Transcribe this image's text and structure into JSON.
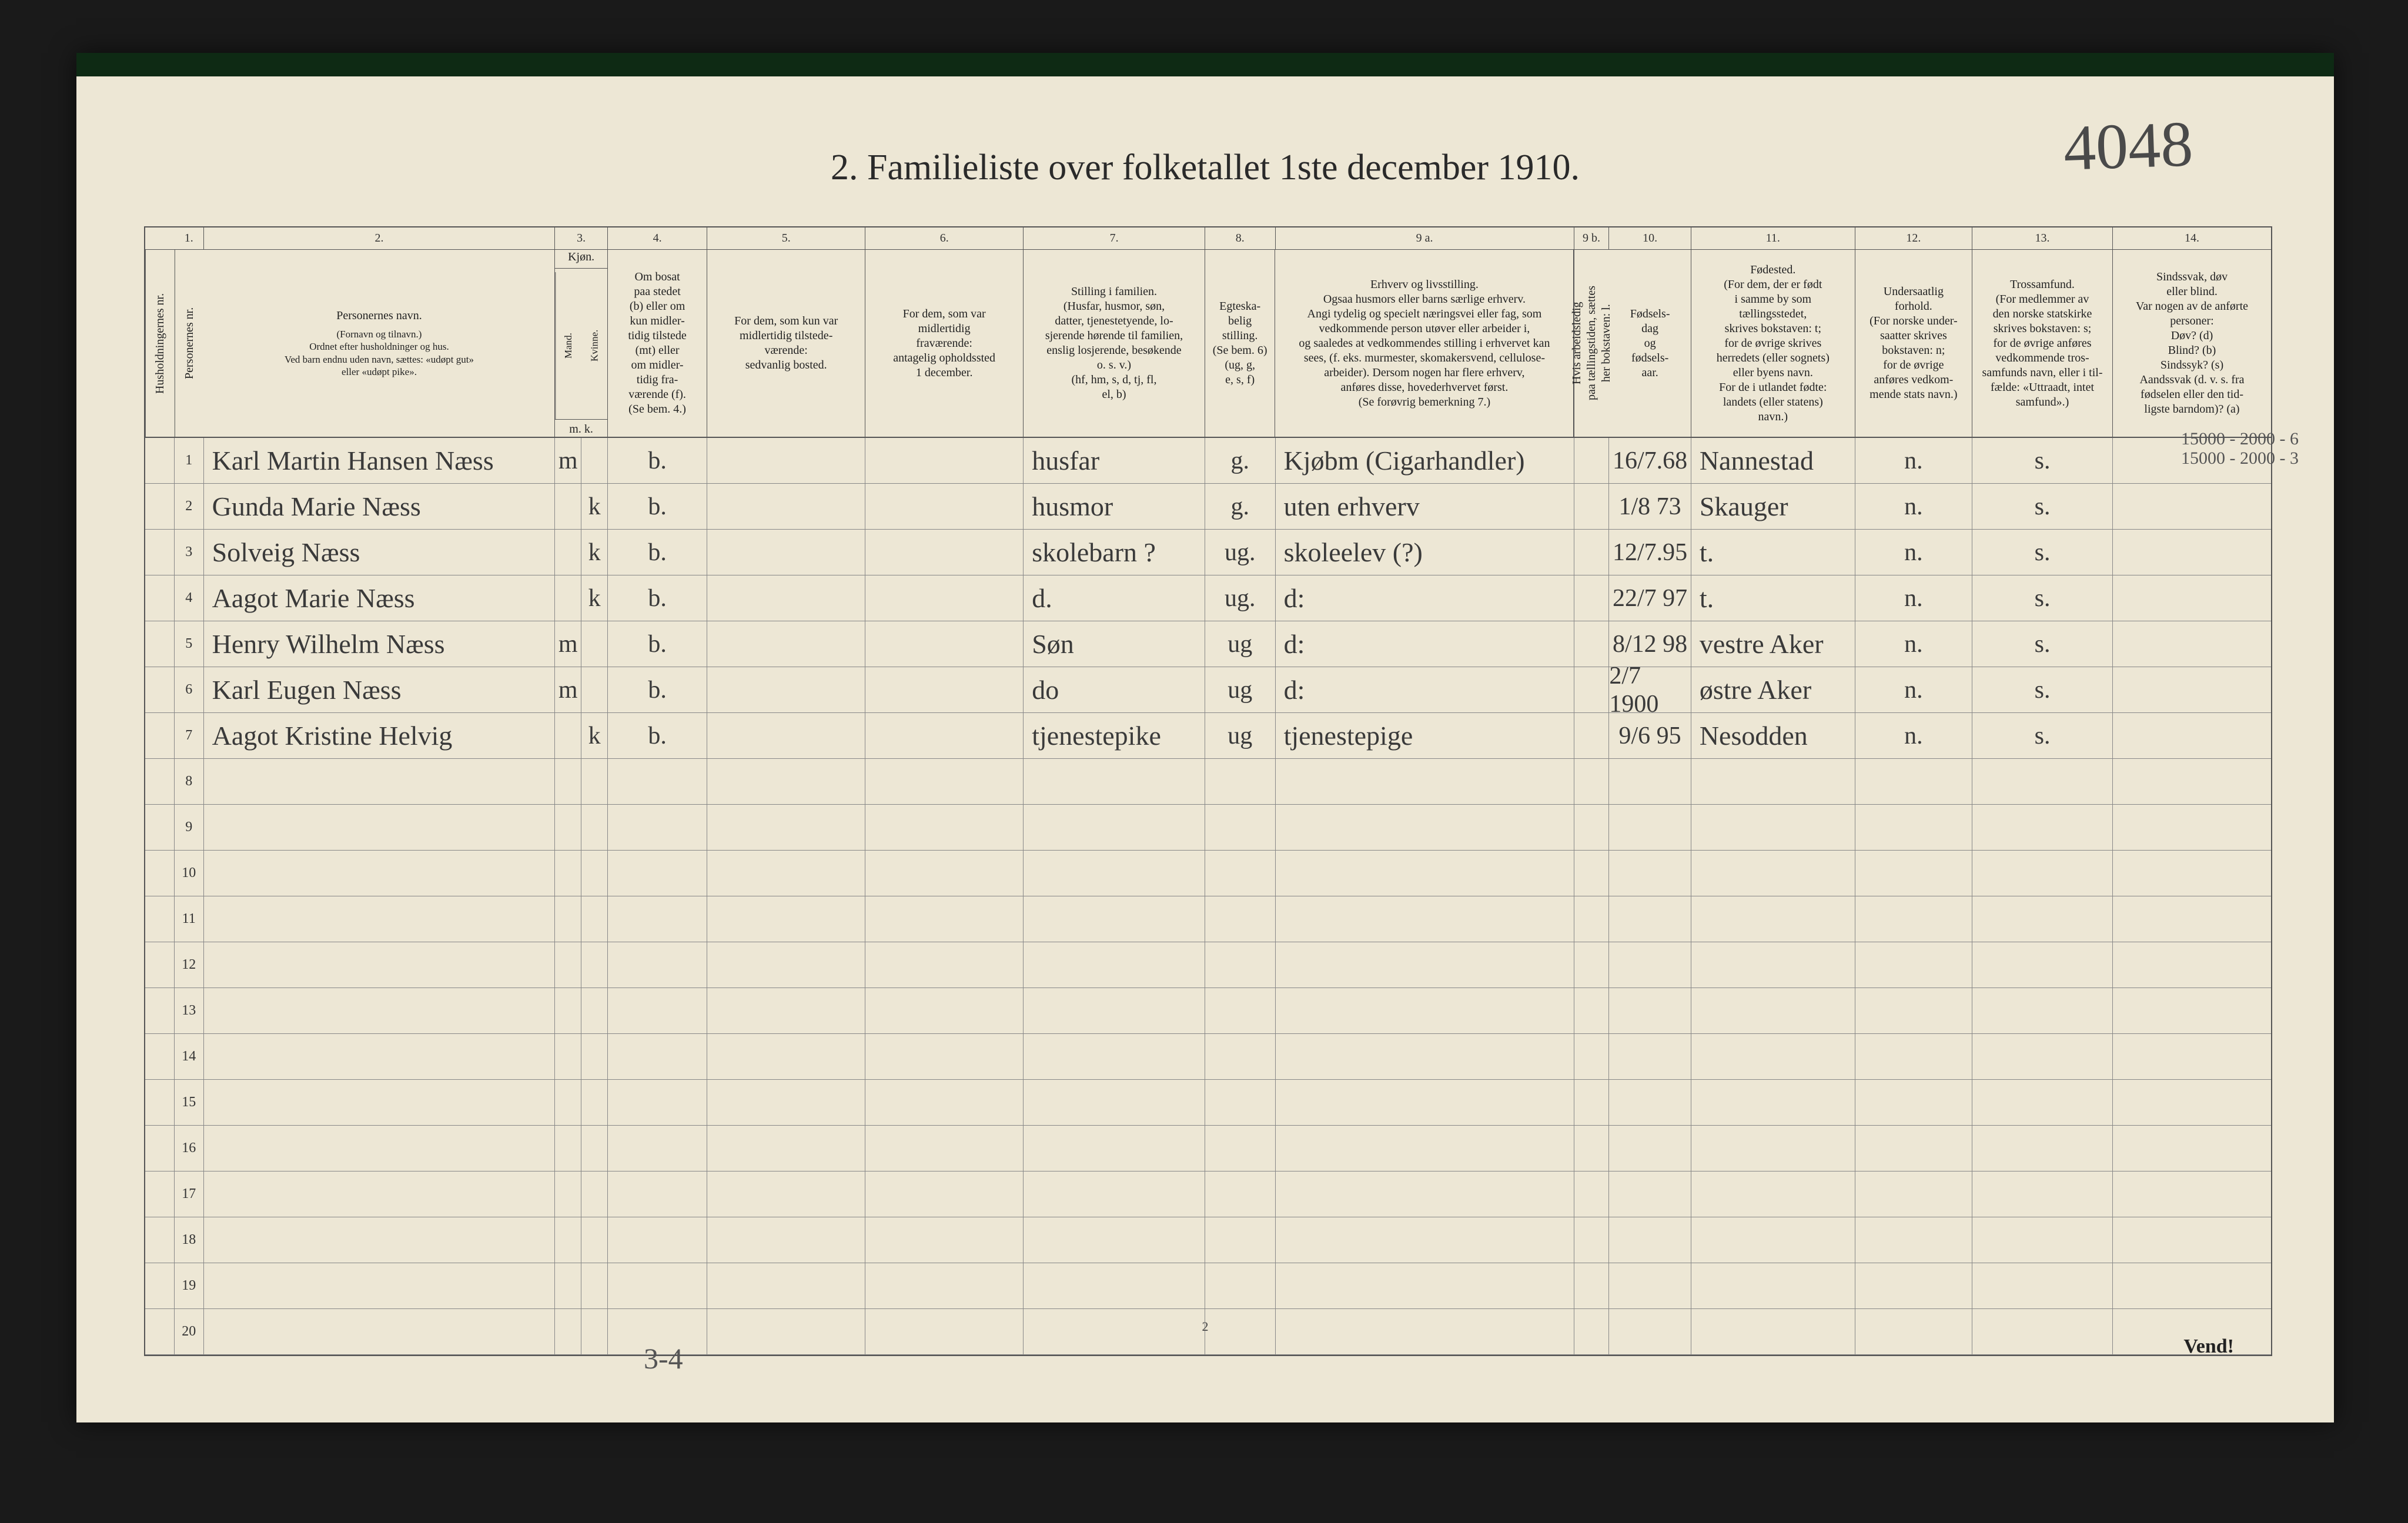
{
  "page": {
    "title": "2.  Familieliste over folketallet 1ste december 1910.",
    "corner_annotation": "4048",
    "footer_page_number": "2",
    "footer_annotation": "3-4",
    "vend": "Vend!",
    "margin_note_line1": "15000 - 2000 - 6",
    "margin_note_line2": "15000 - 2000 - 3"
  },
  "colors": {
    "paper": "#ede7d5",
    "ink": "#2a2a2a",
    "rule": "#555555",
    "hand": "#3a3a3a",
    "top_strip": "#0e2a14"
  },
  "column_numbers": [
    "1.",
    "2.",
    "3.",
    "4.",
    "5.",
    "6.",
    "7.",
    "8.",
    "9 a.",
    "9 b.",
    "10.",
    "11.",
    "12.",
    "13.",
    "14."
  ],
  "headers": {
    "col1": "Husholdningernes nr.",
    "col1b": "Personernes nr.",
    "col2": "Personernes navn.",
    "col2_sub": "(Fornavn og tilnavn.)\nOrdnet efter husholdninger og hus.\nVed barn endnu uden navn, sættes: «udøpt gut»\neller «udøpt pike».",
    "col3_top": "Kjøn.",
    "col3_m": "Mand.",
    "col3_k": "Kvinne.",
    "col3_mk": "m.  k.",
    "col4": "Om bosat\npaa stedet\n(b) eller om\nkun midler-\ntidig tilstede\n(mt) eller\nom midler-\ntidig fra-\nværende (f).\n(Se bem. 4.)",
    "col5": "For dem, som kun var\nmidlertidig tilstede-\nværende:\nsedvanlig bosted.",
    "col6": "For dem, som var\nmidlertidig\nfraværende:\nantagelig opholdssted\n1 december.",
    "col7": "Stilling i familien.\n(Husfar, husmor, søn,\ndatter, tjenestetyende, lo-\nsjerende hørende til familien,\nenslig losjerende, besøkende\no. s. v.)\n(hf, hm, s, d, tj, fl,\nel, b)",
    "col8": "Egteska-\nbelig\nstilling.\n(Se bem. 6)\n(ug, g,\ne, s, f)",
    "col9a": "Erhverv og livsstilling.\nOgsaa husmors eller barns særlige erhverv.\nAngi tydelig og specielt næringsvei eller fag, som\nvedkommende person utøver eller arbeider i,\nog saaledes at vedkommendes stilling i erhvervet kan\nsees, (f. eks. murmester, skomakersvend, cellulose-\narbeider). Dersom nogen har flere erhverv,\nanføres disse, hovederhvervet først.\n(Se forøvrig bemerkning 7.)",
    "col9b": "Hvis arbeidsledig\npaa tællingstiden, sættes\nher bokstaven: l.",
    "col10": "Fødsels-\ndag\nog\nfødsels-\naar.",
    "col11": "Fødested.\n(For dem, der er født\ni samme by som\ntællingsstedet,\nskrives bokstaven: t;\nfor de øvrige skrives\nherredets (eller sognets)\neller byens navn.\nFor de i utlandet fødte:\nlandets (eller statens)\nnavn.)",
    "col12": "Undersaatlig\nforhold.\n(For norske under-\nsaatter skrives\nbokstaven: n;\nfor de øvrige\nanføres vedkom-\nmende stats navn.)",
    "col13": "Trossamfund.\n(For medlemmer av\nden norske statskirke\nskrives bokstaven: s;\nfor de øvrige anføres\nvedkommende tros-\nsamfunds navn, eller i til-\nfælde: «Uttraadt, intet\nsamfund».)",
    "col14": "Sindssvak, døv\neller blind.\nVar nogen av de anførte\npersoner:\nDøv?        (d)\nBlind?      (b)\nSindssyk?  (s)\nAandssvak (d. v. s. fra\nfødselen eller den tid-\nligste barndom)?  (a)"
  },
  "rows": [
    {
      "n": "1",
      "name": "Karl Martin Hansen Næss",
      "sex": "m",
      "bos": "b.",
      "stil": "husfar",
      "egt": "g.",
      "erv": "Kjøbm (Cigarhandler)",
      "fdag": "16/7.68",
      "fsted": "Nannestad",
      "und": "n.",
      "tro": "s."
    },
    {
      "n": "2",
      "name": "Gunda Marie Næss",
      "sex": "k",
      "bos": "b.",
      "stil": "husmor",
      "egt": "g.",
      "erv": "uten erhverv",
      "fdag": "1/8 73",
      "fsted": "Skauger",
      "und": "n.",
      "tro": "s."
    },
    {
      "n": "3",
      "name": "Solveig Næss",
      "sex": "k",
      "bos": "b.",
      "stil": "skolebarn ?",
      "egt": "ug.",
      "erv": "skoleelev  (?)",
      "fdag": "12/7.95",
      "fsted": "t.",
      "und": "n.",
      "tro": "s."
    },
    {
      "n": "4",
      "name": "Aagot Marie Næss",
      "sex": "k",
      "bos": "b.",
      "stil": "d.",
      "egt": "ug.",
      "erv": "d:",
      "fdag": "22/7 97",
      "fsted": "t.",
      "und": "n.",
      "tro": "s."
    },
    {
      "n": "5",
      "name": "Henry Wilhelm Næss",
      "sex": "m",
      "bos": "b.",
      "stil": "Søn",
      "egt": "ug",
      "erv": "d:",
      "fdag": "8/12 98",
      "fsted": "vestre Aker",
      "und": "n.",
      "tro": "s."
    },
    {
      "n": "6",
      "name": "Karl Eugen Næss",
      "sex": "m",
      "bos": "b.",
      "stil": "do",
      "egt": "ug",
      "erv": "d:",
      "fdag": "2/7 1900",
      "fsted": "østre Aker",
      "und": "n.",
      "tro": "s."
    },
    {
      "n": "7",
      "name": "Aagot Kristine Helvig",
      "sex": "k",
      "bos": "b.",
      "stil": "tjenestepike",
      "egt": "ug",
      "erv": "tjenestepige",
      "fdag": "9/6 95",
      "fsted": "Nesodden",
      "und": "n.",
      "tro": "s."
    },
    {
      "n": "8"
    },
    {
      "n": "9"
    },
    {
      "n": "10"
    },
    {
      "n": "11"
    },
    {
      "n": "12"
    },
    {
      "n": "13"
    },
    {
      "n": "14"
    },
    {
      "n": "15"
    },
    {
      "n": "16"
    },
    {
      "n": "17"
    },
    {
      "n": "18"
    },
    {
      "n": "19"
    },
    {
      "n": "20"
    }
  ]
}
